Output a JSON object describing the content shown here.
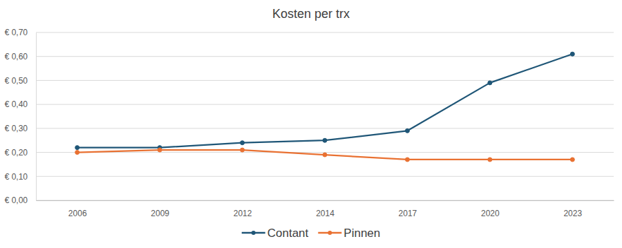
{
  "chart_data": {
    "type": "line",
    "title": "Kosten per trx",
    "categories": [
      "2006",
      "2009",
      "2012",
      "2014",
      "2017",
      "2020",
      "2023"
    ],
    "series": [
      {
        "name": "Contant",
        "color": "#1f5677",
        "marker": "circle",
        "values": [
          0.22,
          0.22,
          0.24,
          0.25,
          0.29,
          0.49,
          0.61
        ]
      },
      {
        "name": "Pinnen",
        "color": "#e97132",
        "marker": "circle",
        "values": [
          0.2,
          0.21,
          0.21,
          0.19,
          0.17,
          0.17,
          0.17
        ]
      }
    ],
    "ylim": [
      0,
      0.7
    ],
    "yticks": [
      {
        "value": 0,
        "label": "€ 0,00"
      },
      {
        "value": 0.1,
        "label": "€ 0,10"
      },
      {
        "value": 0.2,
        "label": "€ 0,20"
      },
      {
        "value": 0.3,
        "label": "€ 0,30"
      },
      {
        "value": 0.4,
        "label": "€ 0,40"
      },
      {
        "value": 0.5,
        "label": "€ 0,50"
      },
      {
        "value": 0.6,
        "label": "€ 0,60"
      },
      {
        "value": 0.7,
        "label": "€ 0,70"
      }
    ],
    "grid": true,
    "legend": "bottom"
  }
}
